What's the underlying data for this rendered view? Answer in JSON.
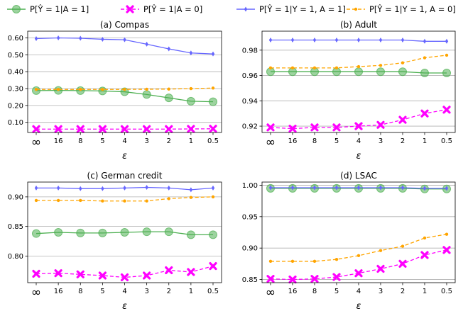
{
  "legend": [
    {
      "label": "P[Ŷ = 1|A = 1]",
      "color": "#4caf50",
      "marker": "circle",
      "dash": "solid"
    },
    {
      "label": "P[Ŷ = 1|A = 0]",
      "color": "#ff00ff",
      "marker": "x",
      "dash": "dashed"
    },
    {
      "label": "P[Ŷ = 1|Y = 1, A = 1]",
      "color": "#6666ff",
      "marker": "diamond",
      "dash": "solid"
    },
    {
      "label": "P[Ŷ = 1|Y = 1, A = 0]",
      "color": "#ffa500",
      "marker": "dot",
      "dash": "dashed"
    }
  ],
  "chart_data": [
    {
      "type": "line",
      "title": "(a) Compas",
      "xlabel": "ε",
      "categories": [
        "∞",
        "16",
        "8",
        "5",
        "4",
        "3",
        "2",
        "1",
        "0.5"
      ],
      "ylim": [
        0.04,
        0.64
      ],
      "yticks": [
        0.1,
        0.2,
        0.3,
        0.4,
        0.5,
        0.6
      ],
      "ytick_labels": [
        "0.10",
        "0.20",
        "0.30",
        "0.40",
        "0.50",
        "0.60"
      ],
      "series": [
        {
          "values": [
            0.288,
            0.289,
            0.288,
            0.286,
            0.281,
            0.265,
            0.245,
            0.225,
            0.222
          ]
        },
        {
          "values": [
            0.06,
            0.06,
            0.06,
            0.06,
            0.06,
            0.06,
            0.06,
            0.061,
            0.062
          ]
        },
        {
          "values": [
            0.596,
            0.6,
            0.598,
            0.592,
            0.589,
            0.563,
            0.535,
            0.511,
            0.505
          ]
        },
        {
          "values": [
            0.295,
            0.295,
            0.295,
            0.295,
            0.295,
            0.296,
            0.297,
            0.3,
            0.303
          ]
        }
      ]
    },
    {
      "type": "line",
      "title": "(b) Adult",
      "xlabel": "ε",
      "categories": [
        "∞",
        "16",
        "8",
        "5",
        "4",
        "3",
        "2",
        "1",
        "0.5"
      ],
      "ylim": [
        0.915,
        0.995
      ],
      "yticks": [
        0.92,
        0.94,
        0.96,
        0.98
      ],
      "ytick_labels": [
        "0.92",
        "0.94",
        "0.96",
        "0.98"
      ],
      "series": [
        {
          "values": [
            0.963,
            0.963,
            0.963,
            0.963,
            0.963,
            0.963,
            0.963,
            0.962,
            0.962
          ]
        },
        {
          "values": [
            0.919,
            0.918,
            0.919,
            0.919,
            0.92,
            0.921,
            0.925,
            0.93,
            0.933
          ]
        },
        {
          "values": [
            0.988,
            0.988,
            0.988,
            0.988,
            0.988,
            0.988,
            0.988,
            0.987,
            0.987
          ]
        },
        {
          "values": [
            0.966,
            0.966,
            0.966,
            0.966,
            0.967,
            0.968,
            0.97,
            0.974,
            0.976
          ]
        }
      ]
    },
    {
      "type": "line",
      "title": "(c) German credit",
      "xlabel": "ε",
      "categories": [
        "∞",
        "16",
        "8",
        "5",
        "4",
        "3",
        "2",
        "1",
        "0.5"
      ],
      "ylim": [
        0.755,
        0.925
      ],
      "yticks": [
        0.8,
        0.85,
        0.9
      ],
      "ytick_labels": [
        "0.80",
        "0.85",
        "0.90"
      ],
      "series": [
        {
          "values": [
            0.838,
            0.84,
            0.839,
            0.839,
            0.84,
            0.841,
            0.841,
            0.836,
            0.836
          ]
        },
        {
          "values": [
            0.77,
            0.771,
            0.769,
            0.767,
            0.764,
            0.767,
            0.776,
            0.773,
            0.783
          ]
        },
        {
          "values": [
            0.915,
            0.915,
            0.914,
            0.914,
            0.915,
            0.916,
            0.915,
            0.912,
            0.915
          ]
        },
        {
          "values": [
            0.894,
            0.894,
            0.894,
            0.893,
            0.893,
            0.893,
            0.897,
            0.899,
            0.9
          ]
        }
      ]
    },
    {
      "type": "line",
      "title": "(d) LSAC",
      "xlabel": "ε",
      "categories": [
        "∞",
        "16",
        "8",
        "5",
        "4",
        "3",
        "2",
        "1",
        "0.5"
      ],
      "ylim": [
        0.845,
        1.005
      ],
      "yticks": [
        0.85,
        0.9,
        0.95,
        1.0
      ],
      "ytick_labels": [
        "0.85",
        "0.90",
        "0.95",
        "1.00"
      ],
      "series": [
        {
          "values": [
            0.995,
            0.995,
            0.995,
            0.995,
            0.995,
            0.995,
            0.995,
            0.994,
            0.994
          ]
        },
        {
          "values": [
            0.851,
            0.85,
            0.851,
            0.854,
            0.86,
            0.867,
            0.875,
            0.889,
            0.897
          ]
        },
        {
          "values": [
            0.996,
            0.996,
            0.996,
            0.996,
            0.996,
            0.996,
            0.996,
            0.995,
            0.995
          ]
        },
        {
          "values": [
            0.879,
            0.879,
            0.879,
            0.882,
            0.888,
            0.896,
            0.903,
            0.916,
            0.922
          ]
        }
      ]
    }
  ]
}
